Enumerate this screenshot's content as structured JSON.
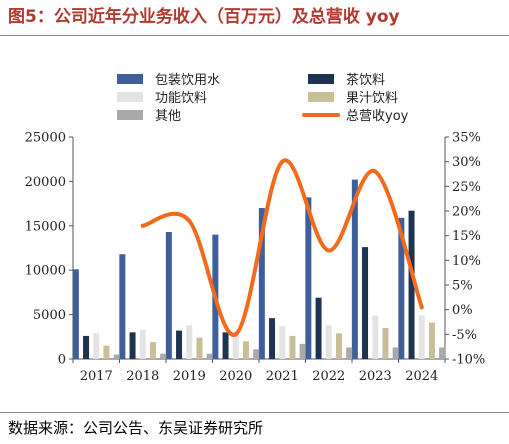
{
  "title": "图5：公司近年分业务收入（百万元）及总营收 yoy",
  "source": "数据来源：公司公告、东吴证券研究所",
  "chart_data": {
    "type": "bar",
    "categories": [
      "2017",
      "2018",
      "2019",
      "2020",
      "2021",
      "2022",
      "2023",
      "2024"
    ],
    "series": [
      {
        "name": "包装饮用水",
        "color": "#3e5f9c",
        "axis": "left",
        "values": [
          10100,
          11800,
          14300,
          14000,
          17000,
          18200,
          20200,
          15900
        ]
      },
      {
        "name": "茶饮料",
        "color": "#1e3350",
        "axis": "left",
        "values": [
          2600,
          3000,
          3200,
          3000,
          4600,
          6900,
          12600,
          16700
        ]
      },
      {
        "name": "功能饮料",
        "color": "#e3e3e3",
        "axis": "left",
        "values": [
          2900,
          3300,
          3800,
          3100,
          3700,
          3800,
          4900,
          4900
        ]
      },
      {
        "name": "果汁饮料",
        "color": "#c8bf98",
        "axis": "left",
        "values": [
          1500,
          1900,
          2400,
          2000,
          2600,
          2900,
          3500,
          4100
        ]
      },
      {
        "name": "其他",
        "color": "#a9a9a9",
        "axis": "left",
        "values": [
          500,
          600,
          600,
          1100,
          1700,
          1300,
          1300,
          1300
        ]
      },
      {
        "name": "总营收yoy",
        "type": "line",
        "color": "#f26b1d",
        "axis": "right",
        "values": [
          null,
          17,
          18,
          -5,
          30,
          12,
          28,
          0.5
        ]
      }
    ],
    "y_left": {
      "ylim": [
        0,
        25000
      ],
      "ticks": [
        0,
        5000,
        10000,
        15000,
        20000,
        25000
      ]
    },
    "y_right": {
      "ylim": [
        -10,
        35
      ],
      "ticks": [
        -10,
        -5,
        0,
        5,
        10,
        15,
        20,
        25,
        30,
        35
      ],
      "tick_labels": [
        "-10%",
        "-5%",
        "0%",
        "5%",
        "10%",
        "15%",
        "20%",
        "25%",
        "30%",
        "35%"
      ]
    },
    "legend": "top",
    "grid": false
  }
}
